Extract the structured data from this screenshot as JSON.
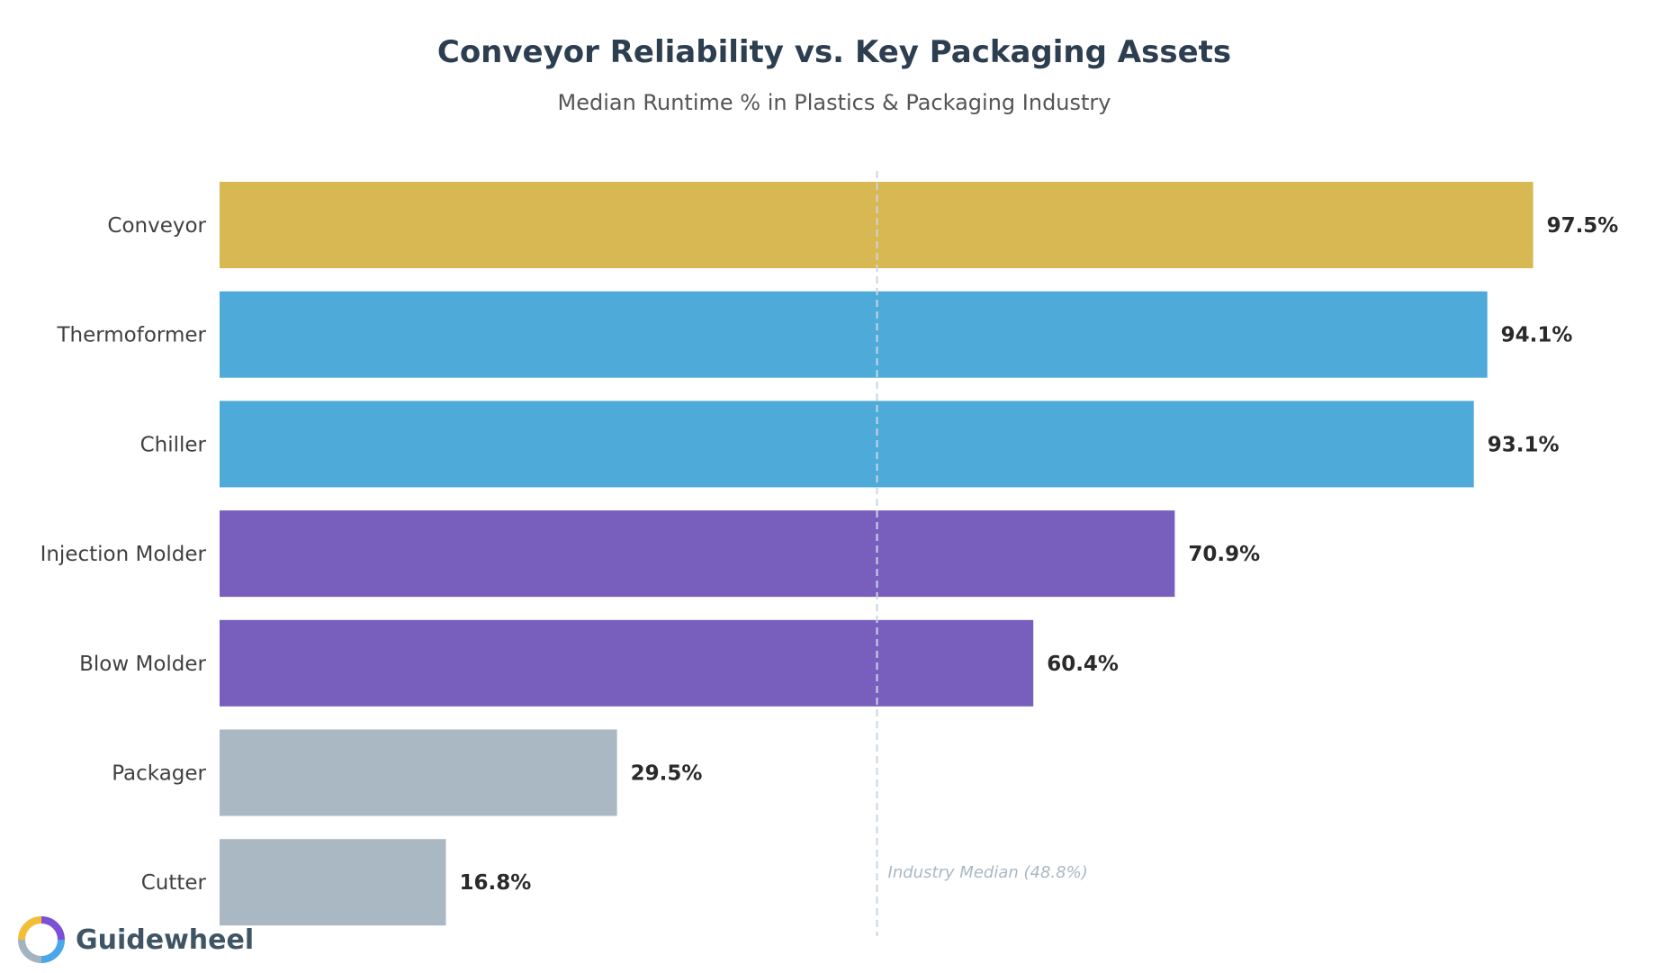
{
  "colors": {
    "highlight": "#d8b852",
    "high": "#4daad9",
    "mid": "#785fbe",
    "low": "#aab8c3",
    "reference": "#c9d6df",
    "logo_yellow": "#f2be35",
    "logo_purple": "#7b4fd6",
    "logo_blue": "#4aa6e8",
    "logo_gray": "#a3b3bf"
  },
  "brand": {
    "name": "Guidewheel"
  },
  "chart_data": {
    "type": "bar",
    "orientation": "horizontal",
    "title": "Conveyor Reliability vs. Key Packaging Assets",
    "subtitle": "Median Runtime % in Plastics & Packaging Industry",
    "xlim": [
      0,
      100
    ],
    "grid": false,
    "categories": [
      "Conveyor",
      "Thermoformer",
      "Chiller",
      "Injection Molder",
      "Blow Molder",
      "Packager",
      "Cutter"
    ],
    "values": [
      97.5,
      94.1,
      93.1,
      70.9,
      60.4,
      29.5,
      16.8
    ],
    "value_labels": [
      "97.5%",
      "94.1%",
      "93.1%",
      "70.9%",
      "60.4%",
      "29.5%",
      "16.8%"
    ],
    "bar_colors": [
      "#d8b852",
      "#4daad9",
      "#4daad9",
      "#785fbe",
      "#785fbe",
      "#aab8c3",
      "#aab8c3"
    ],
    "reference_line": {
      "value": 48.8,
      "label": "Industry Median (48.8%)"
    }
  }
}
